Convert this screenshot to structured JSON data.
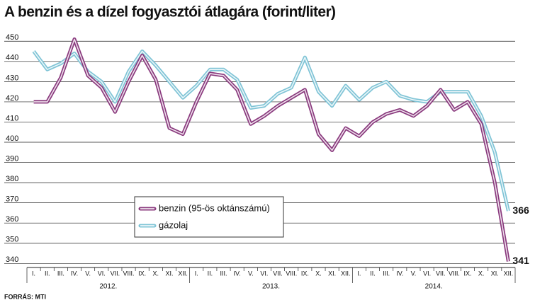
{
  "chart_data": {
    "type": "line",
    "title": "A benzin és a dízel fogyasztói átlagára (forint/liter)",
    "source": "FORRÁS: MTI",
    "categories": [
      "I.",
      "II.",
      "III.",
      "IV.",
      "V.",
      "VI.",
      "VII.",
      "VIII.",
      "IX.",
      "X.",
      "XI.",
      "XII.",
      "I.",
      "II.",
      "III.",
      "IV.",
      "V.",
      "VI.",
      "VII.",
      "VIII.",
      "IX.",
      "X.",
      "XI.",
      "XII.",
      "I.",
      "II.",
      "III.",
      "IV.",
      "V.",
      "VI.",
      "VII.",
      "VIII.",
      "IX.",
      "X.",
      "XI.",
      "XII."
    ],
    "year_labels": [
      "2012.",
      "2013.",
      "2014."
    ],
    "series": [
      {
        "name": "benzin (95-ös oktánszámú)",
        "color": "#8a3a7e",
        "values": [
          420,
          420,
          432,
          451,
          433,
          427,
          415,
          430,
          443,
          431,
          407,
          404,
          420,
          434,
          433,
          426,
          409,
          413,
          418,
          422,
          426,
          404,
          396,
          407,
          403,
          410,
          414,
          416,
          413,
          418,
          426,
          416,
          420,
          409,
          380,
          341
        ]
      },
      {
        "name": "gázolaj",
        "color": "#7fc4d6",
        "values": [
          445,
          436,
          439,
          444,
          435,
          430,
          420,
          435,
          445,
          438,
          430,
          422,
          428,
          436,
          436,
          431,
          417,
          418,
          424,
          427,
          442,
          425,
          418,
          428,
          421,
          427,
          430,
          423,
          421,
          420,
          425,
          425,
          425,
          413,
          395,
          366
        ]
      }
    ],
    "ylim": [
      338,
      455
    ],
    "yticks": [
      340,
      350,
      360,
      370,
      380,
      390,
      400,
      410,
      420,
      430,
      440,
      450
    ],
    "grid": true
  }
}
